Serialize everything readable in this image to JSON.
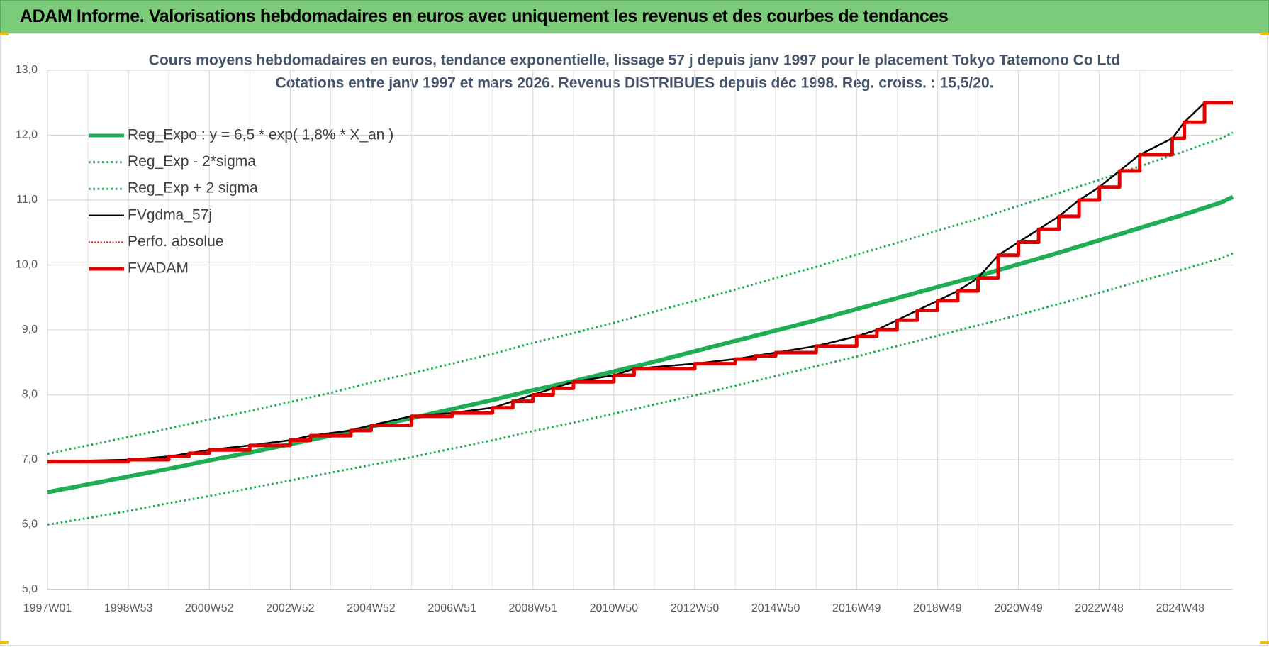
{
  "header": {
    "title": "ADAM Informe. Valorisations hebdomadaires en euros avec uniquement les revenus et des courbes de tendances"
  },
  "chart_data": {
    "type": "line",
    "title": "Cours moyens hebdomadaires en euros, tendance exponentielle, lissage 57 j depuis janv 1997 pour le  placement Tokyo Tatemono Co Ltd",
    "subtitle": "Cotations entre janv 1997 et mars 2026. Revenus DISTRIBUES depuis déc 1998. Reg. croiss. : 15,5/20.",
    "xlim": [
      1997,
      2026.3
    ],
    "xticks": [
      {
        "value": 1997,
        "label": "1997W01"
      },
      {
        "value": 1999,
        "label": "1998W53"
      },
      {
        "value": 2001,
        "label": "2000W52"
      },
      {
        "value": 2003,
        "label": "2002W52"
      },
      {
        "value": 2005,
        "label": "2004W52"
      },
      {
        "value": 2007,
        "label": "2006W51"
      },
      {
        "value": 2009,
        "label": "2008W51"
      },
      {
        "value": 2011,
        "label": "2010W50"
      },
      {
        "value": 2013,
        "label": "2012W50"
      },
      {
        "value": 2015,
        "label": "2014W50"
      },
      {
        "value": 2017,
        "label": "2016W49"
      },
      {
        "value": 2019,
        "label": "2018W49"
      },
      {
        "value": 2021,
        "label": "2020W49"
      },
      {
        "value": 2023,
        "label": "2022W48"
      },
      {
        "value": 2025,
        "label": "2024W48"
      }
    ],
    "ylim": [
      5,
      13
    ],
    "yticks": [
      {
        "value": 5,
        "label": "5,0"
      },
      {
        "value": 6,
        "label": "6,0"
      },
      {
        "value": 7,
        "label": "7,0"
      },
      {
        "value": 8,
        "label": "8,0"
      },
      {
        "value": 9,
        "label": "9,0"
      },
      {
        "value": 10,
        "label": "10,0"
      },
      {
        "value": 11,
        "label": "11,0"
      },
      {
        "value": 12,
        "label": "12,0"
      },
      {
        "value": 13,
        "label": "13,0"
      }
    ],
    "grid": true,
    "legend": "upper-left",
    "x": [
      1997,
      1998,
      1999,
      2000,
      2001,
      2002,
      2003,
      2004,
      2005,
      2006,
      2007,
      2008,
      2009,
      2010,
      2011,
      2012,
      2013,
      2014,
      2015,
      2016,
      2017,
      2018,
      2019,
      2020,
      2021,
      2022,
      2023,
      2024,
      2025,
      2026,
      2026.3
    ],
    "series": [
      {
        "name": "Reg_Expo : y = 6,5 * exp( 1,8% *  X_an )",
        "color": "#1fae55",
        "width": 6,
        "dash": "solid",
        "values": [
          6.5,
          6.62,
          6.74,
          6.86,
          6.99,
          7.11,
          7.24,
          7.37,
          7.51,
          7.64,
          7.78,
          7.92,
          8.07,
          8.21,
          8.36,
          8.51,
          8.67,
          8.83,
          8.99,
          9.15,
          9.32,
          9.49,
          9.66,
          9.83,
          10.01,
          10.19,
          10.38,
          10.57,
          10.76,
          10.96,
          11.05
        ]
      },
      {
        "name": "Reg_Exp - 2*sigma",
        "color": "#1fae55",
        "width": 3,
        "dash": "dotted",
        "values": [
          6.0,
          6.1,
          6.21,
          6.33,
          6.44,
          6.56,
          6.68,
          6.8,
          6.92,
          7.04,
          7.17,
          7.3,
          7.44,
          7.57,
          7.71,
          7.85,
          7.99,
          8.14,
          8.29,
          8.44,
          8.59,
          8.75,
          8.91,
          9.07,
          9.23,
          9.4,
          9.57,
          9.75,
          9.92,
          10.1,
          10.18
        ]
      },
      {
        "name": "Reg_Exp + 2 sigma",
        "color": "#1fae55",
        "width": 3,
        "dash": "dotted",
        "values": [
          7.09,
          7.22,
          7.35,
          7.48,
          7.62,
          7.75,
          7.89,
          8.03,
          8.19,
          8.33,
          8.48,
          8.63,
          8.8,
          8.95,
          9.11,
          9.28,
          9.45,
          9.62,
          9.8,
          9.97,
          10.16,
          10.34,
          10.53,
          10.71,
          10.91,
          11.11,
          11.31,
          11.52,
          11.73,
          11.95,
          12.04
        ]
      },
      {
        "name": "FVgdma_57j",
        "color": "#000000",
        "width": 2.5,
        "dash": "solid",
        "step": false,
        "x": [
          1997,
          1999,
          2000,
          2000.5,
          2001,
          2002,
          2003,
          2003.5,
          2004.5,
          2005,
          2006,
          2007,
          2008,
          2008.5,
          2009,
          2009.5,
          2010,
          2011,
          2011.5,
          2013,
          2014,
          2014.5,
          2015,
          2016,
          2017,
          2017.5,
          2018,
          2018.5,
          2019,
          2019.5,
          2020,
          2020.5,
          2021,
          2021.5,
          2022,
          2022.5,
          2023,
          2023.5,
          2024,
          2024.8,
          2025.1,
          2025.6,
          2026.3
        ],
        "values": [
          6.97,
          7.0,
          7.05,
          7.1,
          7.15,
          7.22,
          7.3,
          7.37,
          7.45,
          7.53,
          7.67,
          7.72,
          7.8,
          7.9,
          8.0,
          8.1,
          8.2,
          8.3,
          8.4,
          8.48,
          8.55,
          8.6,
          8.65,
          8.75,
          8.9,
          9.0,
          9.15,
          9.3,
          9.45,
          9.6,
          9.8,
          10.15,
          10.35,
          10.55,
          10.75,
          11.0,
          11.2,
          11.45,
          11.7,
          11.95,
          12.2,
          12.5,
          12.5
        ]
      },
      {
        "name": "Perfo. absolue",
        "color": "#e00000",
        "width": 2,
        "dash": "dotted",
        "step": true,
        "x": [
          1997,
          1999,
          2000,
          2000.5,
          2001,
          2002,
          2003,
          2003.5,
          2004.5,
          2005,
          2006,
          2007,
          2008,
          2008.5,
          2009,
          2009.5,
          2010,
          2011,
          2011.5,
          2013,
          2014,
          2014.5,
          2015,
          2016,
          2017,
          2017.5,
          2018,
          2018.5,
          2019,
          2019.5,
          2020,
          2020.5,
          2021,
          2021.5,
          2022,
          2022.5,
          2023,
          2023.5,
          2024,
          2024.8,
          2025.1,
          2025.6,
          2026.3
        ],
        "values": [
          6.97,
          7.0,
          7.05,
          7.1,
          7.15,
          7.22,
          7.3,
          7.37,
          7.45,
          7.53,
          7.67,
          7.72,
          7.8,
          7.9,
          8.0,
          8.1,
          8.2,
          8.3,
          8.4,
          8.48,
          8.55,
          8.6,
          8.65,
          8.75,
          8.9,
          9.0,
          9.15,
          9.3,
          9.45,
          9.6,
          9.8,
          10.15,
          10.35,
          10.55,
          10.75,
          11.0,
          11.2,
          11.45,
          11.7,
          11.95,
          12.2,
          12.5,
          12.5
        ]
      },
      {
        "name": "FVADAM",
        "color": "#e00000",
        "width": 5,
        "dash": "solid",
        "step": true,
        "x": [
          1997,
          1999,
          2000,
          2000.5,
          2001,
          2002,
          2003,
          2003.5,
          2004.5,
          2005,
          2006,
          2007,
          2008,
          2008.5,
          2009,
          2009.5,
          2010,
          2011,
          2011.5,
          2013,
          2014,
          2014.5,
          2015,
          2016,
          2017,
          2017.5,
          2018,
          2018.5,
          2019,
          2019.5,
          2020,
          2020.5,
          2021,
          2021.5,
          2022,
          2022.5,
          2023,
          2023.5,
          2024,
          2024.8,
          2025.1,
          2025.6,
          2026.3
        ],
        "values": [
          6.97,
          7.0,
          7.05,
          7.1,
          7.15,
          7.22,
          7.3,
          7.37,
          7.45,
          7.53,
          7.67,
          7.72,
          7.8,
          7.9,
          8.0,
          8.1,
          8.2,
          8.3,
          8.4,
          8.48,
          8.55,
          8.6,
          8.65,
          8.75,
          8.9,
          9.0,
          9.15,
          9.3,
          9.45,
          9.6,
          9.8,
          10.15,
          10.35,
          10.55,
          10.75,
          11.0,
          11.2,
          11.45,
          11.7,
          11.95,
          12.2,
          12.5,
          12.5
        ]
      }
    ]
  }
}
